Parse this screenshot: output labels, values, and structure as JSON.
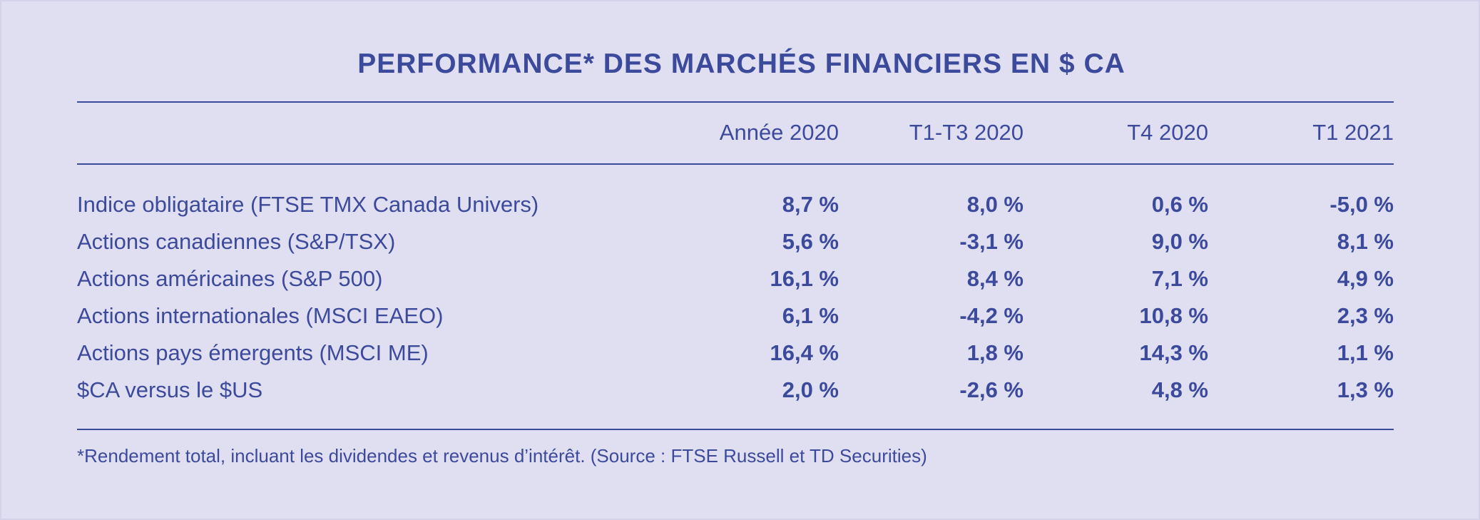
{
  "title": "PERFORMANCE* DES MARCHÉS FINANCIERS EN $ CA",
  "columns": [
    "Année 2020",
    "T1-T3 2020",
    "T4 2020",
    "T1 2021"
  ],
  "rows": [
    {
      "label": "Indice obligataire (FTSE TMX Canada Univers)",
      "values": [
        "8,7 %",
        "8,0 %",
        "0,6 %",
        "-5,0 %"
      ]
    },
    {
      "label": "Actions canadiennes (S&P/TSX)",
      "values": [
        "5,6 %",
        "-3,1 %",
        "9,0 %",
        "8,1 %"
      ]
    },
    {
      "label": "Actions américaines (S&P 500)",
      "values": [
        "16,1 %",
        "8,4 %",
        "7,1 %",
        "4,9 %"
      ]
    },
    {
      "label": "Actions internationales (MSCI EAEO)",
      "values": [
        "6,1 %",
        "-4,2 %",
        "10,8 %",
        "2,3 %"
      ]
    },
    {
      "label": "Actions pays émergents (MSCI ME)",
      "values": [
        "16,4 %",
        "1,8 %",
        "14,3 %",
        "1,1 %"
      ]
    },
    {
      "label": "$CA versus le $US",
      "values": [
        "2,0 %",
        "-2,6 %",
        "4,8 %",
        "1,3 %"
      ]
    }
  ],
  "footnote": "*Rendement total, incluant les dividendes et revenus d’intérêt. (Source : FTSE Russell et TD Securities)",
  "colors": {
    "background": "#e0dff2",
    "text": "#3c4a9c"
  }
}
